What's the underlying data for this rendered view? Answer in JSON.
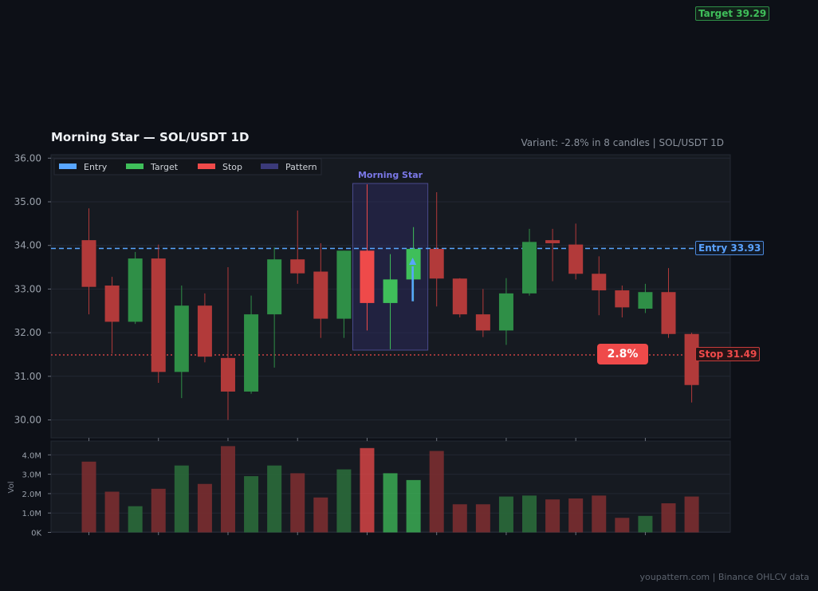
{
  "title": "Morning Star  —  SOL/USDT 1D",
  "subtitle": "Variant: -2.8% in 8 candles  |  SOL/USDT 1D",
  "footer": "youpattern.com  |  Binance OHLCV data",
  "legend": [
    {
      "label": "Entry",
      "color": "#58a6ff"
    },
    {
      "label": "Target",
      "color": "#3fbf5a"
    },
    {
      "label": "Stop",
      "color": "#ef4a4a"
    },
    {
      "label": "Pattern",
      "color": "#3b3a7a"
    }
  ],
  "pattern_label": "Morning Star",
  "tags": {
    "target": "Target  39.29",
    "entry": "Entry  33.93",
    "stop": "Stop  31.49",
    "move_pct": "2.8%"
  },
  "chart_data": [
    {
      "type": "candlestick",
      "ylim": [
        29.7,
        36.1
      ],
      "yticks": [
        30,
        31,
        32,
        33,
        34,
        35,
        36
      ],
      "ytick_labels": [
        "30.00",
        "31.00",
        "32.00",
        "33.00",
        "34.00",
        "35.00",
        "36.00"
      ],
      "grid": true,
      "legend_position": "top-left",
      "levels": {
        "entry": 33.93,
        "target": 39.29,
        "stop": 31.49
      },
      "pattern_range": [
        12,
        14
      ],
      "candles": [
        {
          "o": 34.12,
          "h": 34.85,
          "l": 32.42,
          "c": 33.05
        },
        {
          "o": 33.08,
          "h": 33.28,
          "l": 31.52,
          "c": 32.25
        },
        {
          "o": 32.25,
          "h": 33.85,
          "l": 32.2,
          "c": 33.7
        },
        {
          "o": 33.7,
          "h": 34.02,
          "l": 30.85,
          "c": 31.1
        },
        {
          "o": 31.1,
          "h": 33.08,
          "l": 30.5,
          "c": 32.62
        },
        {
          "o": 32.62,
          "h": 32.9,
          "l": 31.32,
          "c": 31.45
        },
        {
          "o": 31.42,
          "h": 33.5,
          "l": 30.0,
          "c": 30.65
        },
        {
          "o": 30.65,
          "h": 32.85,
          "l": 30.6,
          "c": 32.42
        },
        {
          "o": 32.42,
          "h": 33.95,
          "l": 31.2,
          "c": 33.68
        },
        {
          "o": 33.68,
          "h": 34.8,
          "l": 33.12,
          "c": 33.36
        },
        {
          "o": 33.4,
          "h": 34.05,
          "l": 31.88,
          "c": 32.32
        },
        {
          "o": 32.32,
          "h": 33.88,
          "l": 31.88,
          "c": 33.88
        },
        {
          "o": 33.88,
          "h": 35.4,
          "l": 32.05,
          "c": 32.68
        },
        {
          "o": 32.68,
          "h": 33.8,
          "l": 31.62,
          "c": 33.22
        },
        {
          "o": 33.22,
          "h": 34.42,
          "l": 32.72,
          "c": 33.92
        },
        {
          "o": 33.92,
          "h": 35.22,
          "l": 32.6,
          "c": 33.24
        },
        {
          "o": 33.24,
          "h": 33.25,
          "l": 32.35,
          "c": 32.42
        },
        {
          "o": 32.42,
          "h": 33.0,
          "l": 31.9,
          "c": 32.05
        },
        {
          "o": 32.05,
          "h": 33.25,
          "l": 31.72,
          "c": 32.9
        },
        {
          "o": 32.9,
          "h": 34.38,
          "l": 32.85,
          "c": 34.08
        },
        {
          "o": 34.12,
          "h": 34.38,
          "l": 33.18,
          "c": 34.05
        },
        {
          "o": 34.02,
          "h": 34.5,
          "l": 33.22,
          "c": 33.35
        },
        {
          "o": 33.35,
          "h": 33.75,
          "l": 32.4,
          "c": 32.97
        },
        {
          "o": 32.97,
          "h": 33.08,
          "l": 32.35,
          "c": 32.58
        },
        {
          "o": 32.55,
          "h": 33.12,
          "l": 32.45,
          "c": 32.93
        },
        {
          "o": 32.93,
          "h": 33.48,
          "l": 31.88,
          "c": 31.97
        },
        {
          "o": 31.97,
          "h": 32.0,
          "l": 30.4,
          "c": 30.8
        }
      ]
    },
    {
      "type": "bar",
      "ylabel": "Vol",
      "ylim": [
        0,
        4.6
      ],
      "yticks": [
        0,
        1,
        2,
        3,
        4
      ],
      "ytick_labels": [
        "0K",
        "1.0M",
        "2.0M",
        "3.0M",
        "4.0M"
      ],
      "values": [
        3.65,
        2.1,
        1.35,
        2.25,
        3.45,
        2.5,
        4.45,
        2.9,
        3.45,
        3.05,
        1.8,
        3.25,
        4.35,
        3.05,
        2.7,
        4.2,
        1.45,
        1.45,
        1.85,
        1.9,
        1.7,
        1.75,
        1.9,
        0.75,
        0.85,
        1.5,
        1.85
      ]
    }
  ]
}
